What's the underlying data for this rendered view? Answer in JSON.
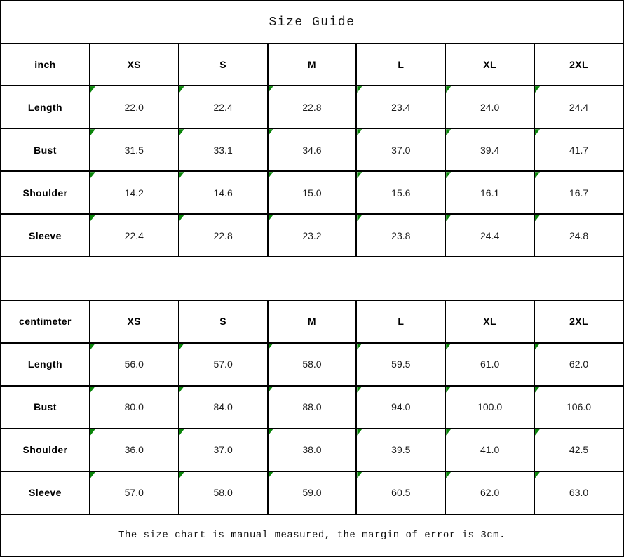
{
  "title": "Size Guide",
  "footer_note": "The size chart is manual measured, the margin of error is 3cm.",
  "colors": {
    "flag_green": "#0a850a",
    "border": "#000000",
    "text": "#1c1c1c"
  },
  "chart_data": [
    {
      "type": "table",
      "unit": "inch",
      "columns": [
        "inch",
        "XS",
        "S",
        "M",
        "L",
        "XL",
        "2XL"
      ],
      "rows": [
        {
          "label": "Length",
          "values": [
            "22.0",
            "22.4",
            "22.8",
            "23.4",
            "24.0",
            "24.4"
          ]
        },
        {
          "label": "Bust",
          "values": [
            "31.5",
            "33.1",
            "34.6",
            "37.0",
            "39.4",
            "41.7"
          ]
        },
        {
          "label": "Shoulder",
          "values": [
            "14.2",
            "14.6",
            "15.0",
            "15.6",
            "16.1",
            "16.7"
          ]
        },
        {
          "label": "Sleeve",
          "values": [
            "22.4",
            "22.8",
            "23.2",
            "23.8",
            "24.4",
            "24.8"
          ]
        }
      ]
    },
    {
      "type": "table",
      "unit": "centimeter",
      "columns": [
        "centimeter",
        "XS",
        "S",
        "M",
        "L",
        "XL",
        "2XL"
      ],
      "rows": [
        {
          "label": "Length",
          "values": [
            "56.0",
            "57.0",
            "58.0",
            "59.5",
            "61.0",
            "62.0"
          ]
        },
        {
          "label": "Bust",
          "values": [
            "80.0",
            "84.0",
            "88.0",
            "94.0",
            "100.0",
            "106.0"
          ]
        },
        {
          "label": "Shoulder",
          "values": [
            "36.0",
            "37.0",
            "38.0",
            "39.5",
            "41.0",
            "42.5"
          ]
        },
        {
          "label": "Sleeve",
          "values": [
            "57.0",
            "58.0",
            "59.0",
            "60.5",
            "62.0",
            "63.0"
          ]
        }
      ]
    }
  ]
}
